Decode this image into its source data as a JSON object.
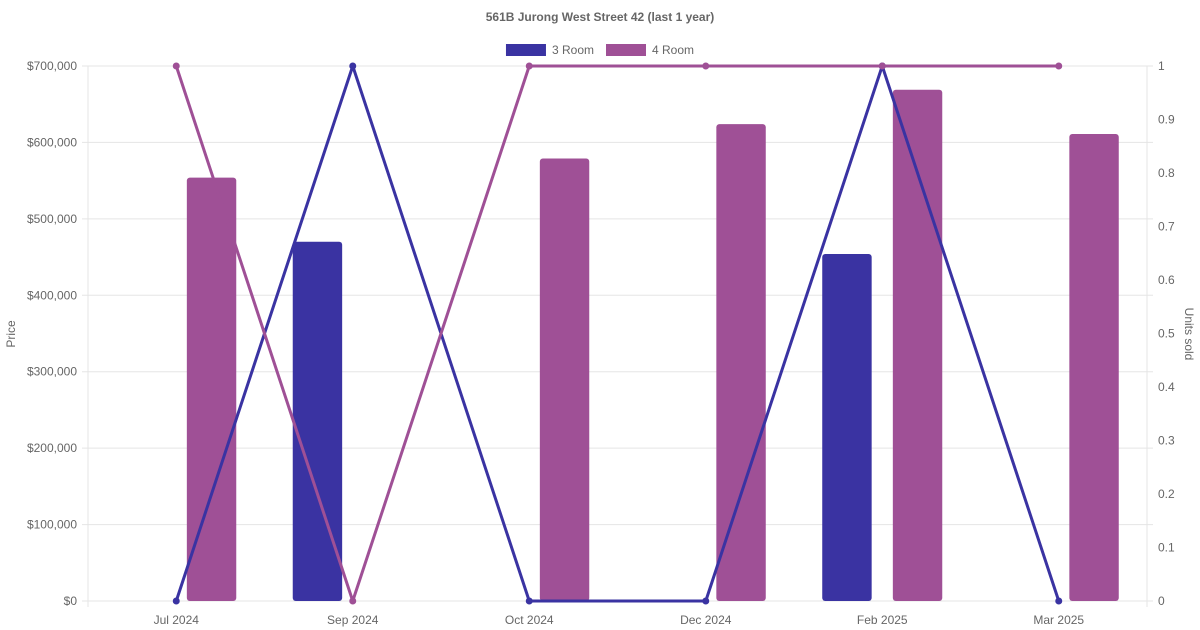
{
  "chart_data": {
    "type": "bar",
    "title": "561B Jurong West Street 42 (last 1 year)",
    "categories": [
      "Jul 2024",
      "Sep 2024",
      "Oct 2024",
      "Dec 2024",
      "Feb 2025",
      "Mar 2025"
    ],
    "ylabel": "Price",
    "y2label": "Units sold",
    "ylim": [
      0,
      700000
    ],
    "y2lim": [
      0,
      1
    ],
    "y_ticks": [
      "$0",
      "$100,000",
      "$200,000",
      "$300,000",
      "$400,000",
      "$500,000",
      "$600,000",
      "$700,000"
    ],
    "y2_ticks": [
      "0",
      "0.1",
      "0.2",
      "0.3",
      "0.4",
      "0.5",
      "0.6",
      "0.7",
      "0.8",
      "0.9",
      "1"
    ],
    "grid": true,
    "legend_position": "top",
    "series": [
      {
        "name": "3 Room",
        "color": "#3a33a2",
        "price": [
          null,
          470000,
          null,
          null,
          454000,
          null
        ],
        "units": [
          0,
          1,
          0,
          0,
          1,
          0
        ]
      },
      {
        "name": "4 Room",
        "color": "#9f5096",
        "price": [
          554000,
          null,
          579000,
          624000,
          669000,
          611000
        ],
        "units": [
          1,
          0,
          1,
          1,
          1,
          1
        ]
      }
    ]
  }
}
